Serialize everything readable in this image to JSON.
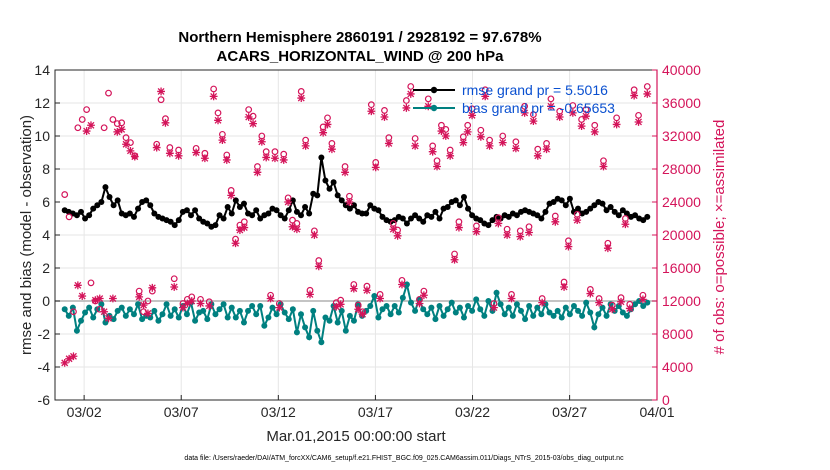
{
  "chart_data": {
    "type": "line",
    "title_line1": "Northern Hemisphere 2860191 / 2928192 = 97.678%",
    "title_line2": "ACARS_HORIZONTAL_WIND @ 200 hPa",
    "xlabel": "Mar.01,2015 00:00:00 start",
    "ylabel_left": "rmse and bias (model - observation)",
    "ylabel_right": "# of obs: o=possible; ×=assimilated",
    "footer": "data file: /Users/raeder/DAI/ATM_forcXX/CAM6_setup/f.e21.FHIST_BGC.f09_025.CAM6assim.011/Diags_NTrS_2015-03/obs_diag_output.nc",
    "x_range_days": [
      0.5,
      31.5
    ],
    "ylim_left": [
      -6,
      14
    ],
    "ylim_right": [
      0,
      40000
    ],
    "x_ticks": [
      {
        "day": 2,
        "label": "03/02"
      },
      {
        "day": 7,
        "label": "03/07"
      },
      {
        "day": 12,
        "label": "03/12"
      },
      {
        "day": 17,
        "label": "03/17"
      },
      {
        "day": 22,
        "label": "03/22"
      },
      {
        "day": 27,
        "label": "03/27"
      },
      {
        "day": 32,
        "label": "04/01"
      }
    ],
    "y_ticks_left": [
      "-6",
      "-4",
      "-2",
      "0",
      "2",
      "4",
      "6",
      "8",
      "10",
      "12",
      "14"
    ],
    "y_ticks_right": [
      "0",
      "4000",
      "8000",
      "12000",
      "16000",
      "20000",
      "24000",
      "28000",
      "32000",
      "36000",
      "40000"
    ],
    "series": [
      {
        "name": "rmse",
        "legend": "rmse grand pr = 5.5016",
        "color": "#000000",
        "axis": "left",
        "values": [
          5.5,
          5.4,
          5.3,
          5.2,
          5.4,
          5.0,
          5.2,
          5.6,
          5.8,
          6.0,
          6.9,
          6.3,
          5.8,
          6.1,
          5.3,
          5.2,
          5.3,
          5.1,
          5.6,
          6.0,
          6.1,
          5.8,
          5.3,
          5.1,
          5.0,
          4.9,
          4.8,
          4.6,
          4.9,
          5.4,
          5.5,
          5.2,
          5.5,
          5.0,
          4.8,
          4.7,
          4.5,
          4.6,
          5.2,
          5.0,
          5.7,
          5.3,
          6.1,
          5.7,
          5.9,
          5.3,
          5.2,
          5.5,
          5.0,
          5.2,
          5.3,
          5.6,
          5.5,
          5.2,
          5.0,
          5.5,
          6.1,
          5.4,
          5.2,
          5.7,
          5.3,
          6.5,
          6.4,
          8.7,
          7.3,
          6.8,
          7.2,
          6.4,
          6.1,
          5.8,
          5.6,
          5.8,
          5.4,
          5.3,
          5.3,
          5.8,
          5.6,
          5.5,
          5.1,
          4.9,
          4.8,
          4.9,
          5.1,
          5.0,
          4.7,
          5.0,
          5.2,
          5.0,
          4.8,
          5.2,
          5.1,
          5.4,
          5.0,
          5.6,
          5.7,
          6.0,
          6.1,
          5.8,
          6.3,
          5.6,
          5.2,
          5.0,
          4.9,
          4.7,
          4.6,
          4.9,
          5.1,
          5.0,
          5.2,
          5.1,
          5.3,
          5.2,
          5.4,
          5.5,
          5.4,
          5.3,
          5.2,
          5.0,
          5.4,
          5.9,
          6.0,
          6.2,
          6.1,
          5.8,
          6.2,
          5.4,
          5.6,
          5.3,
          5.4,
          5.6,
          5.8,
          6.0,
          5.9,
          5.5,
          5.7,
          5.4,
          5.2,
          5.5,
          5.3,
          5.1,
          5.2,
          5.0,
          4.9,
          5.1
        ]
      },
      {
        "name": "bias",
        "legend": "bias grand pr = -0.65653",
        "color": "#008080",
        "axis": "left",
        "values": [
          -0.5,
          -0.9,
          -0.4,
          -1.8,
          -1.2,
          -0.7,
          -0.4,
          -1.0,
          -0.5,
          -0.2,
          -1.3,
          -0.9,
          -1.1,
          -0.6,
          -0.4,
          -0.9,
          -0.5,
          -0.8,
          -0.2,
          -1.1,
          -0.9,
          -1.0,
          -0.6,
          -1.2,
          -0.8,
          -0.2,
          -0.9,
          -0.5,
          -1.0,
          -0.3,
          -0.8,
          -0.1,
          -1.2,
          -0.7,
          -0.6,
          -1.1,
          -0.2,
          -0.8,
          -0.5,
          -0.2,
          -1.0,
          -0.4,
          -1.0,
          -0.6,
          -1.3,
          -0.6,
          -0.3,
          -0.8,
          -0.3,
          -1.5,
          -1.0,
          -0.4,
          -0.8,
          -0.2,
          -0.7,
          -1.1,
          -0.5,
          -1.9,
          -0.8,
          -1.6,
          -2.2,
          -0.6,
          -1.8,
          -2.5,
          -1.0,
          -1.2,
          -0.3,
          -1.3,
          -0.6,
          -1.8,
          -0.9,
          -1.2,
          -0.2,
          -0.9,
          -0.6,
          -0.3,
          0.3,
          -1.0,
          -0.5,
          -0.3,
          -0.8,
          -0.3,
          -0.7,
          0.2,
          1.0,
          -0.1,
          -0.6,
          0.1,
          -0.5,
          -0.8,
          -0.4,
          -1.1,
          -0.3,
          -0.9,
          -0.5,
          -0.1,
          -0.7,
          -0.4,
          -1.0,
          -0.3,
          -0.6,
          0.1,
          -0.5,
          -0.9,
          0.0,
          -0.6,
          0.5,
          -0.2,
          -0.8,
          -0.4,
          -0.9,
          -0.2,
          -0.6,
          -1.1,
          -0.3,
          -0.9,
          -0.4,
          -0.8,
          -0.2,
          -0.7,
          -0.9,
          -0.6,
          -1.0,
          -0.4,
          -0.8,
          -0.3,
          -0.6,
          -0.9,
          -0.1,
          -0.7,
          -1.6,
          -0.8,
          -0.4,
          -0.9,
          -0.2,
          -0.6,
          -0.3,
          -0.7,
          -0.9,
          -0.5,
          -0.2,
          0.0,
          -0.3,
          -0.1
        ]
      },
      {
        "name": "possible",
        "legend": "o=possible",
        "color": "#d4145a",
        "axis": "right",
        "values": [
          24900,
          22200,
          10700,
          33000,
          34000,
          35200,
          14200,
          12000,
          11000,
          33000,
          37200,
          34000,
          33500,
          33600,
          31800,
          31200,
          29600,
          13200,
          10700,
          12000,
          13200,
          31000,
          36400,
          34100,
          30600,
          14700,
          30300,
          11700,
          12200,
          12500,
          30500,
          12200,
          29900,
          11900,
          37700,
          34800,
          32200,
          29700,
          25400,
          19500,
          21200,
          21600,
          35200,
          34400,
          28300,
          32000,
          30100,
          12700,
          30100,
          11700,
          29800,
          24500,
          21800,
          21400,
          37400,
          31500,
          13300,
          20500,
          16900,
          33100,
          34200,
          31100,
          11800,
          12100,
          28300,
          24700,
          14000,
          11500,
          10700,
          13800,
          35800,
          28800,
          12800,
          35100,
          31800,
          21400,
          20600,
          14500,
          36300,
          38000,
          31700,
          12200,
          13200,
          36500,
          30800,
          29000,
          33300,
          32800,
          30300,
          17700,
          21600,
          31900,
          33300,
          35300,
          21100,
          32700,
          37600,
          31500,
          11700,
          22100,
          32000,
          20700,
          12800,
          31300,
          20500,
          35600,
          21000,
          34600,
          30400,
          12300,
          31100,
          36500,
          22300,
          35000,
          14300,
          19300,
          35700,
          22500,
          34000,
          35200,
          13400,
          33300,
          12300,
          29000,
          19000,
          11500,
          34200,
          12400,
          22000,
          11600,
          37600,
          34500,
          12700,
          38000
        ]
      },
      {
        "name": "assimilated",
        "legend": "×=assimilated",
        "color": "#d4145a",
        "axis": "right",
        "values": [
          4500,
          5000,
          5300,
          13900,
          12600,
          32600,
          33300,
          12100,
          12300,
          10700,
          9900,
          12300,
          32500,
          32800,
          31000,
          30200,
          29500,
          12500,
          11500,
          10500,
          13600,
          30600,
          37400,
          33600,
          29900,
          13700,
          29600,
          11200,
          11700,
          12000,
          30000,
          11700,
          29300,
          11400,
          36800,
          33900,
          31500,
          29100,
          24800,
          19000,
          20600,
          20900,
          34300,
          33500,
          27600,
          31300,
          29400,
          12300,
          29300,
          11200,
          29100,
          24000,
          21000,
          20700,
          36600,
          30800,
          12800,
          20000,
          16200,
          32400,
          33400,
          30400,
          11300,
          11600,
          27600,
          24000,
          13500,
          11000,
          10400,
          13300,
          35000,
          28200,
          12300,
          34300,
          31100,
          20700,
          19900,
          14000,
          35400,
          37100,
          30800,
          11700,
          12700,
          35600,
          30100,
          28300,
          32600,
          32000,
          29600,
          17000,
          20900,
          31200,
          32500,
          34500,
          20400,
          31900,
          36800,
          30800,
          11200,
          21400,
          31200,
          20000,
          12300,
          30500,
          19800,
          34800,
          20300,
          33800,
          29600,
          11800,
          30400,
          35600,
          21600,
          34300,
          13700,
          18600,
          34800,
          21800,
          33200,
          34400,
          12900,
          32500,
          11800,
          28300,
          18400,
          11000,
          33400,
          11900,
          21300,
          11100,
          36900,
          33700,
          12200,
          37100
        ]
      }
    ]
  }
}
